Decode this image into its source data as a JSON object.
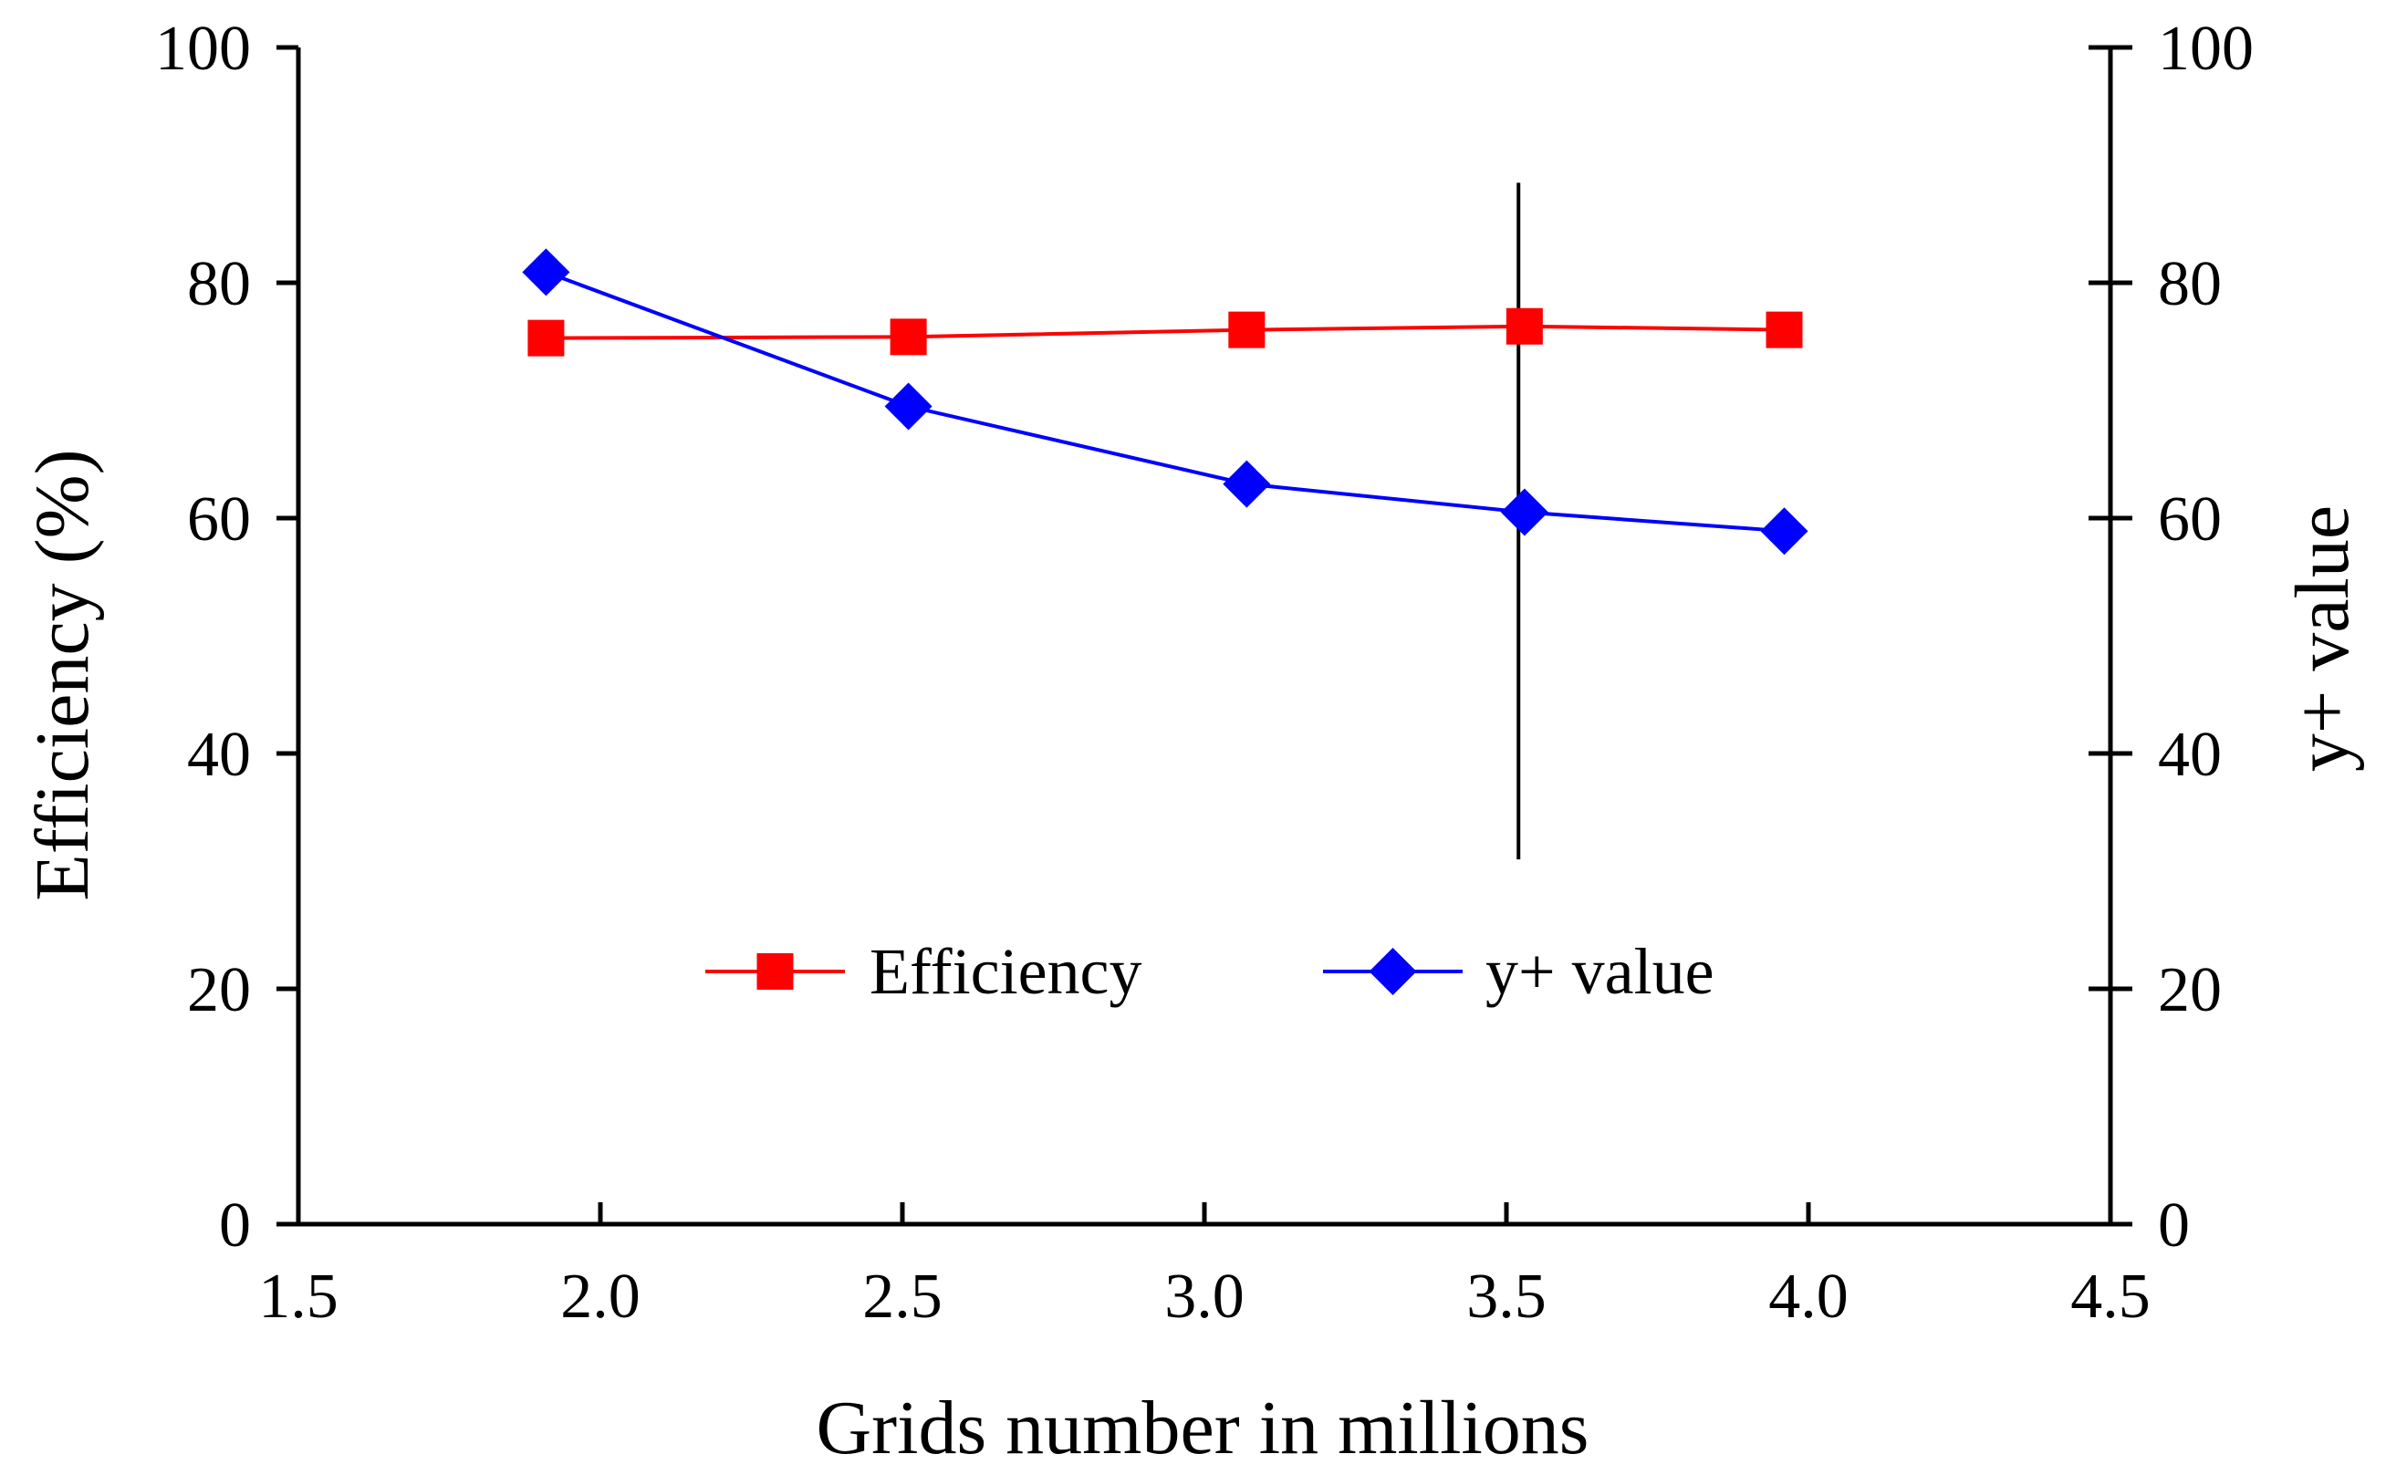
{
  "chart_data": {
    "type": "line",
    "xlabel": "Grids number in millions",
    "ylabel": "Efficiency (%)",
    "y2label": "y+ value",
    "xlim": [
      1.5,
      4.5
    ],
    "xticks": [
      "1.5",
      "2.0",
      "2.5",
      "3.0",
      "3.5",
      "4.0",
      "4.5"
    ],
    "ylim": [
      0,
      100
    ],
    "yticks": [
      "0",
      "20",
      "40",
      "60",
      "80",
      "100"
    ],
    "y2lim": [
      0,
      100
    ],
    "y2ticks": [
      "0",
      "20",
      "40",
      "60",
      "80",
      "100"
    ],
    "grid": false,
    "legend_position": "center",
    "series": [
      {
        "name": "Efficiency",
        "axis": "left",
        "color": "#ff0000",
        "marker": "square",
        "x": [
          1.91,
          2.51,
          3.07,
          3.53,
          3.96
        ],
        "values": [
          75.3,
          75.4,
          76.0,
          76.3,
          76.0
        ]
      },
      {
        "name": "y+ value",
        "axis": "right",
        "color": "#0000ff",
        "marker": "diamond",
        "x": [
          1.91,
          2.51,
          3.07,
          3.53,
          3.96
        ],
        "values": [
          80.9,
          69.5,
          62.9,
          60.5,
          58.9
        ]
      }
    ],
    "annotations": [
      {
        "type": "vertical-line",
        "x": 3.52,
        "y_from": 31,
        "y_to": 88.5,
        "color": "#000000"
      }
    ]
  }
}
